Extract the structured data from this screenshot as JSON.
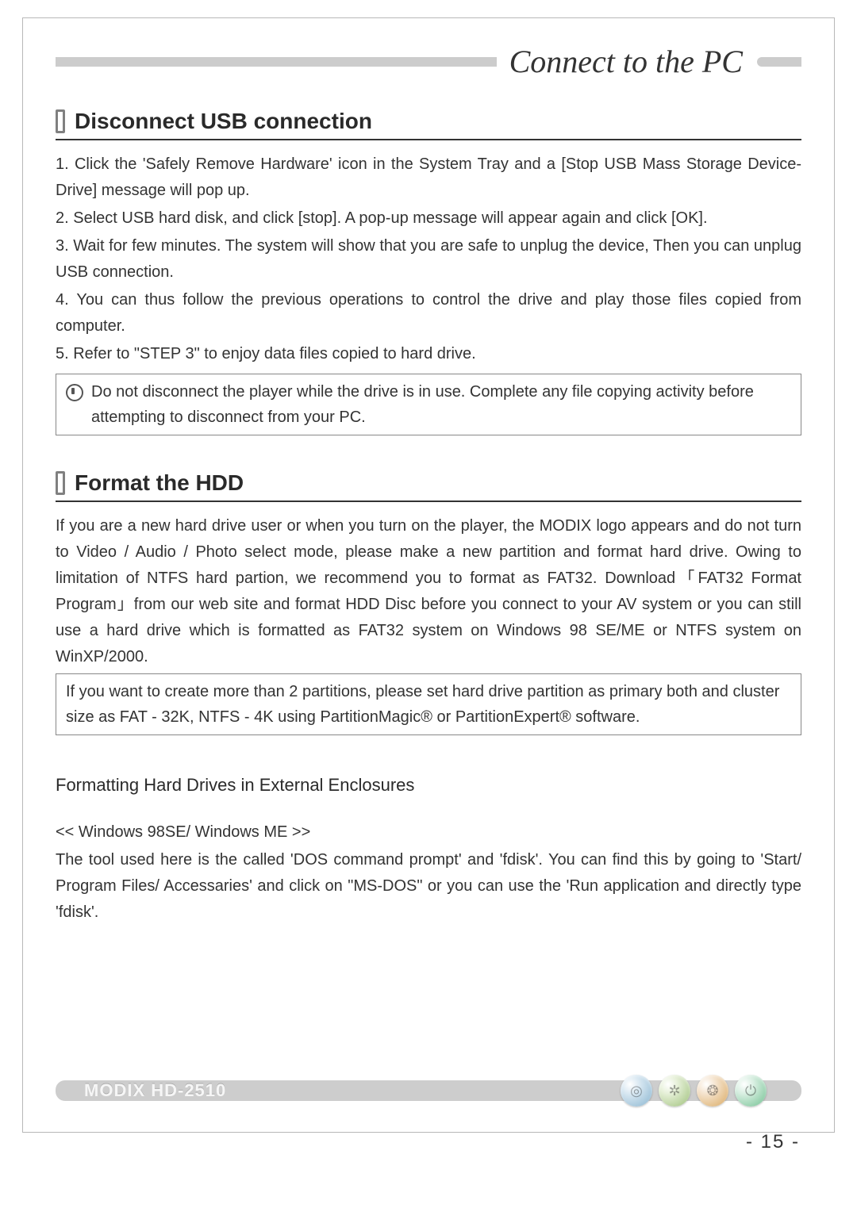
{
  "header": {
    "title": "Connect to the PC",
    "lead_bar_color": "#cccccc",
    "trail_bar_color": "#cccccc",
    "title_color": "#333333",
    "title_fontsize": 40,
    "underline_color": "#333333"
  },
  "section1": {
    "heading": "Disconnect USB connection",
    "steps": [
      "1. Click the 'Safely Remove Hardware' icon in the System Tray and a [Stop USB Mass Storage Device-Drive] message will pop up.",
      "2. Select USB hard disk, and click [stop]. A pop-up message will appear again and click [OK].",
      "3. Wait for few minutes. The system will show that you are safe to unplug the device, Then you can unplug USB connection.",
      "4. You can thus follow the previous operations to control the drive and play those files copied from computer.",
      "5. Refer to \"STEP 3\" to enjoy data files copied to hard drive."
    ],
    "note": "Do not disconnect the player while the drive is in use. Complete any file copying activity before attempting to disconnect from your PC."
  },
  "section2": {
    "heading": "Format the HDD",
    "paragraph": "If you are a new hard drive user or when you turn on the player, the MODIX logo appears and do not turn to Video / Audio / Photo select mode, please make a new partition and format hard drive. Owing to limitation of NTFS hard partion, we recommend you to format as FAT32. Download「FAT32 Format Program」from our web site and format HDD Disc before you connect to your AV system or you can still use a hard drive which is formatted as FAT32 system on Windows 98 SE/ME or NTFS system on WinXP/2000.",
    "note": "If you want to create more than 2 partitions, please set hard drive partition as primary both and cluster size as FAT - 32K, NTFS - 4K using PartitionMagic® or PartitionExpert® software.",
    "subheading": "Formatting Hard Drives in External Enclosures",
    "os_heading": "<< Windows 98SE/ Windows ME >>",
    "os_paragraph": "The tool used here is the called 'DOS command prompt' and 'fdisk'. You can find this by going to 'Start/ Program Files/ Accessaries' and click on \"MS-DOS\" or you can use the 'Run application and directly type 'fdisk'."
  },
  "footer": {
    "brand": "MODIX HD-2510",
    "bar_color": "#cdcdcd",
    "brand_text_color": "#f6f6f6",
    "icons": [
      {
        "name": "disc-icon",
        "c1": "#d9e8f2",
        "c2": "#88b4cf",
        "symbol": "◎"
      },
      {
        "name": "gear-icon",
        "c1": "#e6f0d8",
        "c2": "#9cbf78",
        "symbol": "✲"
      },
      {
        "name": "swirl-icon",
        "c1": "#f5e4cf",
        "c2": "#d9a85f",
        "symbol": "❂"
      },
      {
        "name": "power-icon",
        "c1": "#d9efe2",
        "c2": "#6fbf8f",
        "symbol": "⏻"
      }
    ]
  },
  "page_number": "-  15  -",
  "styles": {
    "body_fontsize": 20,
    "body_lineheight": 1.65,
    "body_color": "#333333",
    "heading_fontsize": 28,
    "heading_color": "#2a2a2a",
    "note_border_color": "#888888",
    "page_border_color": "#b8b8b8",
    "section_bullet_border": "#808080"
  }
}
